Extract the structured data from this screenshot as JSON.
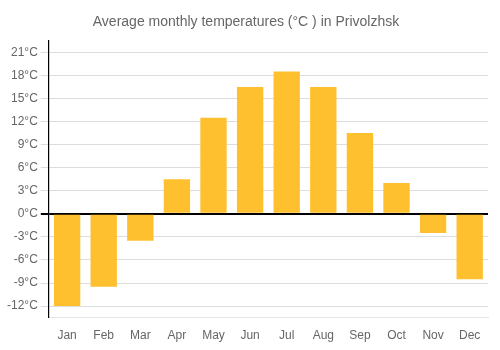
{
  "chart_data": {
    "type": "bar",
    "title": "Average monthly temperatures (°C ) in Privolzhsk",
    "categories": [
      "Jan",
      "Feb",
      "Mar",
      "Apr",
      "May",
      "Jun",
      "Jul",
      "Aug",
      "Sep",
      "Oct",
      "Nov",
      "Dec"
    ],
    "values": [
      -12,
      -9.5,
      -3.5,
      4.5,
      12.5,
      16.5,
      18.5,
      16.5,
      10.5,
      4,
      -2.5,
      -8.5
    ],
    "color": "#FFC030",
    "ylim": [
      -13.5,
      22.5
    ],
    "yticks": [
      {
        "value": -12,
        "label": "-12°C"
      },
      {
        "value": -9,
        "label": "-9°C"
      },
      {
        "value": -6,
        "label": "-6°C"
      },
      {
        "value": -3,
        "label": "-3°C"
      },
      {
        "value": 0,
        "label": "0°C"
      },
      {
        "value": 3,
        "label": "3°C"
      },
      {
        "value": 6,
        "label": "6°C"
      },
      {
        "value": 9,
        "label": "9°C"
      },
      {
        "value": 12,
        "label": "12°C"
      },
      {
        "value": 15,
        "label": "15°C"
      },
      {
        "value": 18,
        "label": "18°C"
      },
      {
        "value": 21,
        "label": "21°C"
      }
    ],
    "grid": true
  }
}
